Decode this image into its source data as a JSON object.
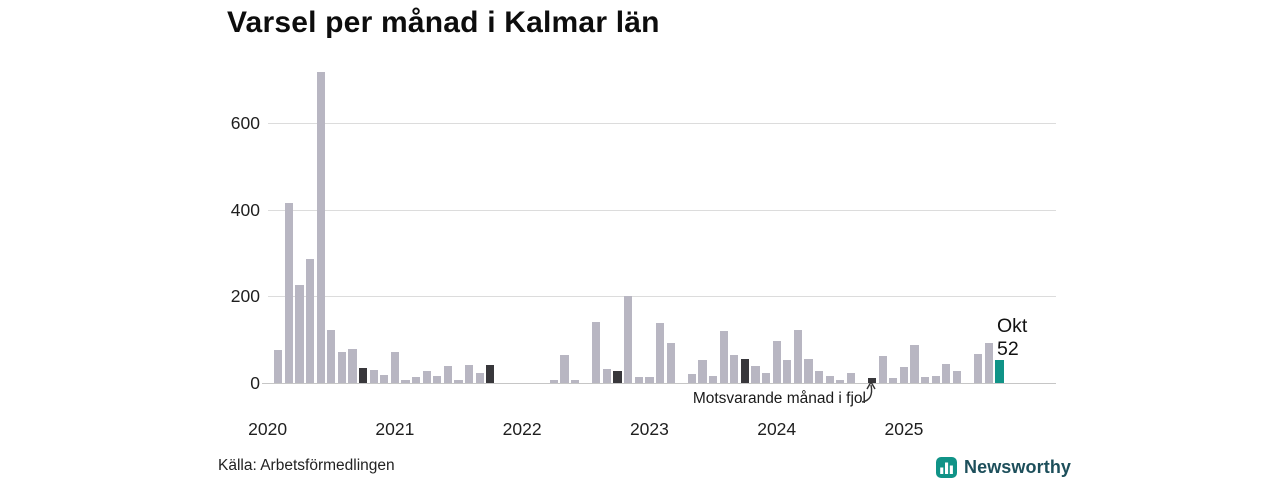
{
  "title": "Varsel per månad i Kalmar län",
  "source": "Källa: Arbetsförmedlingen",
  "annotation": {
    "label": "Motsvarande månad i fjol"
  },
  "branding": {
    "name": "Newsworthy"
  },
  "colors": {
    "bar": "#b8b6c2",
    "highlight_last_year": "#38373b",
    "highlight_current": "#109387",
    "gridline": "#dcdcdc",
    "axis_line": "#c6c6c6",
    "brand_accent": "#109387",
    "brand_text": "#1d4f5b"
  },
  "x_axis": {
    "labels": [
      "2020",
      "2021",
      "2022",
      "2023",
      "2024",
      "2025"
    ]
  },
  "y_axis": {
    "ticks": [
      0,
      200,
      400,
      600
    ]
  },
  "chart_data": {
    "type": "bar",
    "title": "Varsel per månad i Kalmar län",
    "x": [
      "2020-01",
      "2020-02",
      "2020-03",
      "2020-04",
      "2020-05",
      "2020-06",
      "2020-07",
      "2020-08",
      "2020-09",
      "2020-10",
      "2020-11",
      "2020-12",
      "2021-01",
      "2021-02",
      "2021-03",
      "2021-04",
      "2021-05",
      "2021-06",
      "2021-07",
      "2021-08",
      "2021-09",
      "2021-10",
      "2021-11",
      "2021-12",
      "2022-01",
      "2022-02",
      "2022-03",
      "2022-04",
      "2022-05",
      "2022-06",
      "2022-07",
      "2022-08",
      "2022-09",
      "2022-10",
      "2022-11",
      "2022-12",
      "2023-01",
      "2023-02",
      "2023-03",
      "2023-04",
      "2023-05",
      "2023-06",
      "2023-07",
      "2023-08",
      "2023-09",
      "2023-10",
      "2023-11",
      "2023-12",
      "2024-01",
      "2024-02",
      "2024-03",
      "2024-04",
      "2024-05",
      "2024-06",
      "2024-07",
      "2024-08",
      "2024-09",
      "2024-10",
      "2024-11",
      "2024-12",
      "2025-01",
      "2025-02",
      "2025-03",
      "2025-04",
      "2025-05",
      "2025-06",
      "2025-07",
      "2025-08",
      "2025-09",
      "2025-10"
    ],
    "values": [
      0,
      75,
      415,
      225,
      285,
      718,
      122,
      72,
      78,
      35,
      30,
      18,
      72,
      7,
      14,
      27,
      15,
      40,
      7,
      42,
      23,
      42,
      0,
      0,
      0,
      0,
      0,
      6,
      64,
      8,
      0,
      140,
      33,
      28,
      200,
      14,
      14,
      138,
      92,
      0,
      20,
      52,
      16,
      121,
      64,
      56,
      40,
      24,
      98,
      52,
      123,
      56,
      27,
      15,
      8,
      24,
      0,
      11,
      62,
      11,
      37,
      87,
      14,
      17,
      44,
      27,
      0,
      67,
      92,
      52
    ],
    "ylim": [
      0,
      745
    ],
    "y_ticks": [
      0,
      200,
      400,
      600
    ],
    "grid": "horizontal",
    "highlight_same_month_last_year": [
      "2020-10",
      "2021-10",
      "2022-10",
      "2023-10",
      "2024-10"
    ],
    "current_month": {
      "x": "2025-10",
      "label": "Okt",
      "value": 52
    }
  }
}
